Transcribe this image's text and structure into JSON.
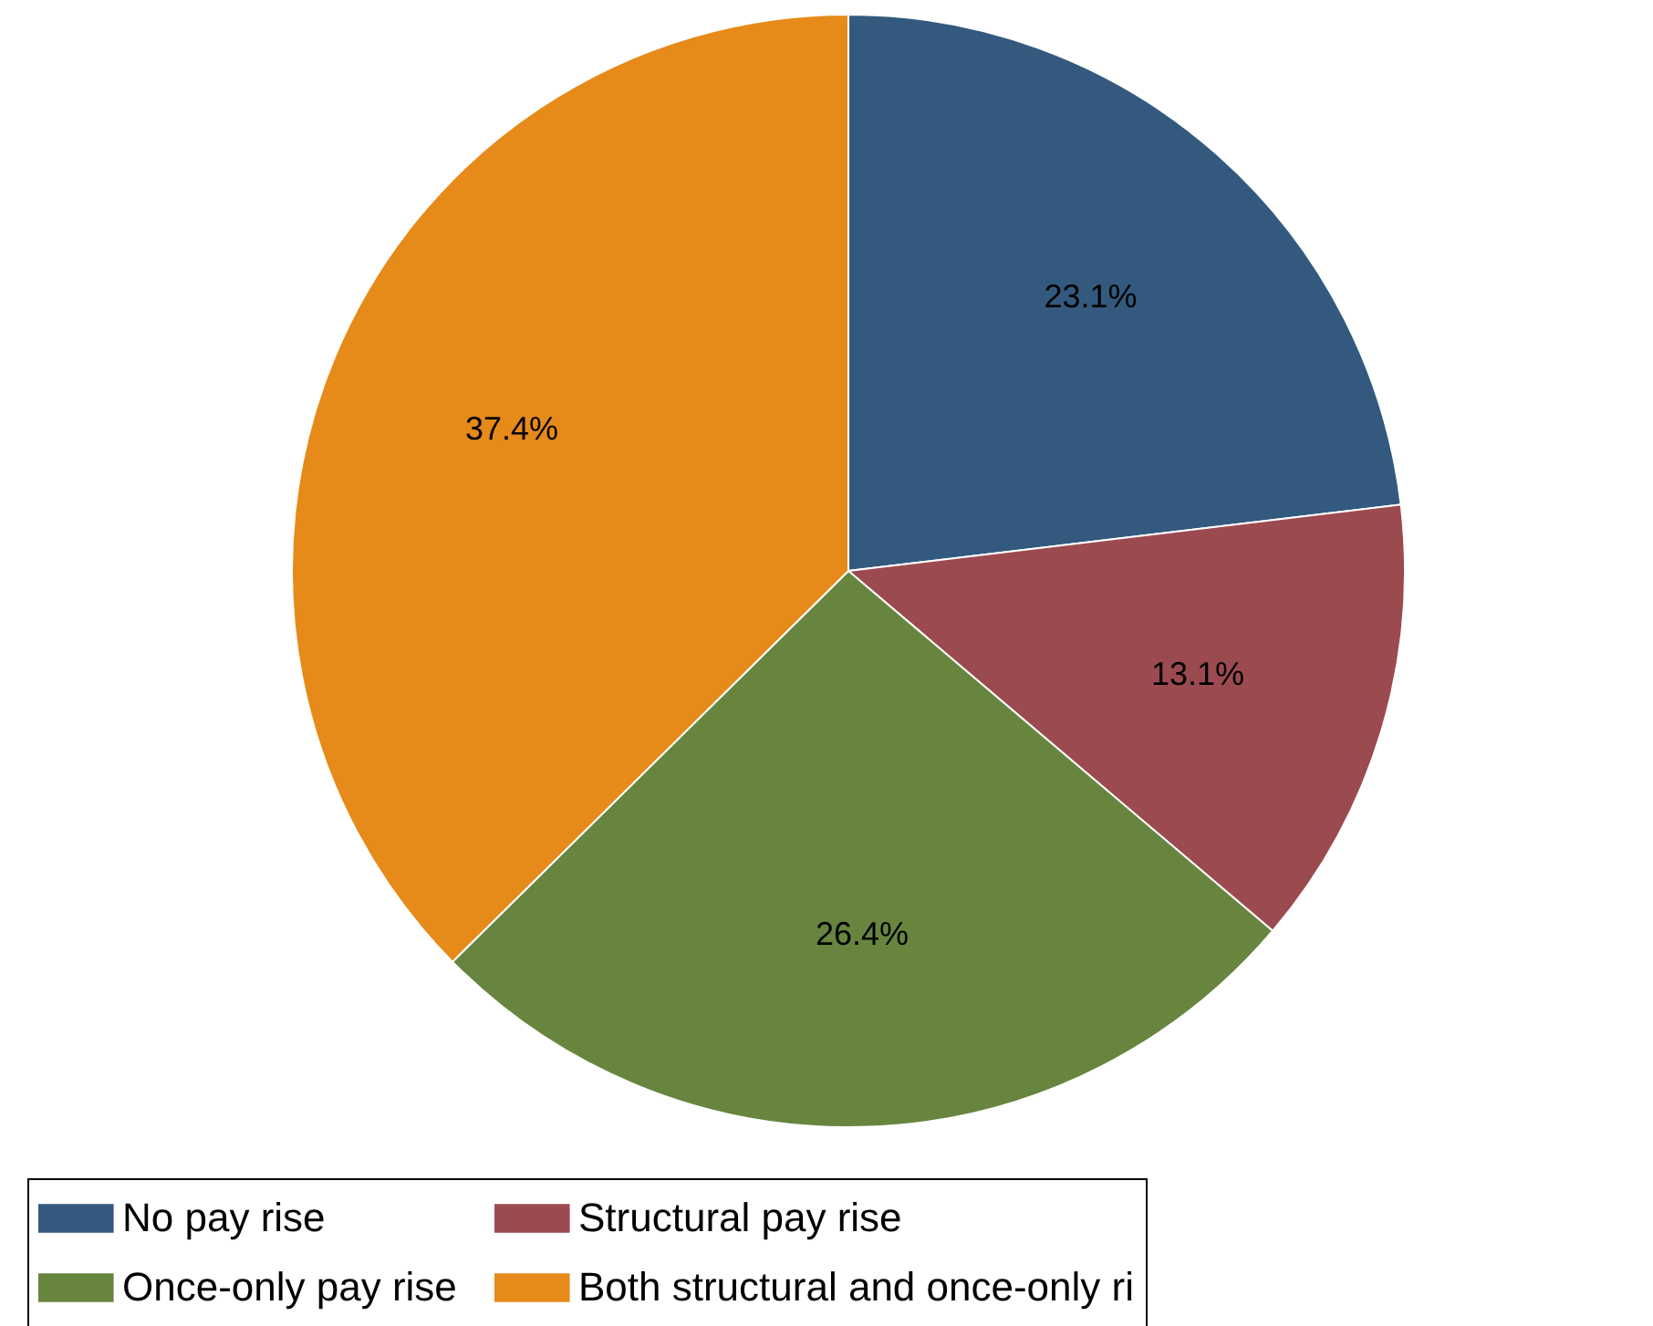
{
  "chart_data": {
    "type": "pie",
    "categories": [
      "No pay rise",
      "Structural pay rise",
      "Once-only pay rise",
      "Both structural and once-only ri"
    ],
    "values": [
      23.1,
      13.1,
      26.4,
      37.4
    ],
    "colors": [
      "#335a7e",
      "#9b4a50",
      "#67853f",
      "#e68a1a"
    ],
    "value_labels": [
      "23.1%",
      "13.1%",
      "26.4%",
      "37.4%"
    ],
    "legend": "bottom"
  }
}
